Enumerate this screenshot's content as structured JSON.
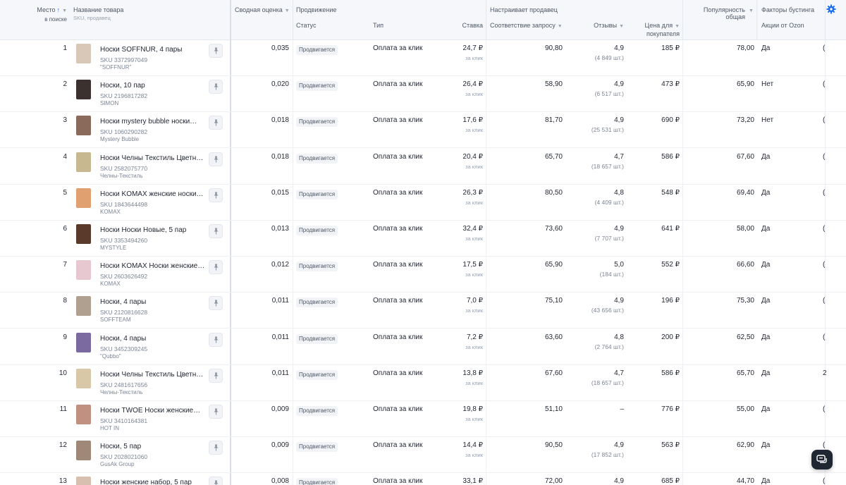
{
  "header": {
    "rank": "Место",
    "rank_sub": "в поиске",
    "product": "Название товара",
    "product_sub": "SKU, продавец",
    "score": "Сводная оценка",
    "promotion": "Продвижение",
    "status": "Статус",
    "type": "Тип",
    "bid": "Ставка",
    "seller_configures": "Настраивает продавец",
    "match": "Соответствие запросу",
    "reviews": "Отзывы",
    "price_line1": "Цена для",
    "price_line2": "покупателя",
    "popularity_line1": "Популярность",
    "popularity_line2": "общая",
    "boost_factors": "Факторы бустинга",
    "ozon_promos": "Акции от Ozon"
  },
  "icons": {
    "sort": "arrow-up-icon",
    "settings": "gear-icon",
    "pin": "pin-icon",
    "chat": "chat-icon"
  },
  "colors": {
    "accent": "#1a6cf0",
    "header_bg": "#f5f7fa"
  },
  "rows": [
    {
      "rank": "1",
      "name": "Носки SOFFNUR, 4 пары",
      "sku": "SKU 3372997049",
      "seller": "\"SOFFNUR\"",
      "score": "0,035",
      "status": "Продвигается",
      "type": "Оплата за клик",
      "bid": "24,7 ₽",
      "bid_sub": "за клик",
      "match": "90,80",
      "rating": "4,9",
      "reviews": "(4 849 шт.)",
      "price": "185 ₽",
      "pop": "78,00",
      "promo": "Да",
      "extra": "(",
      "thumb": "#d9c8b8"
    },
    {
      "rank": "2",
      "name": "Носки, 10 пар",
      "sku": "SKU 2196817282",
      "seller": "SIMON",
      "score": "0,020",
      "status": "Продвигается",
      "type": "Оплата за клик",
      "bid": "26,4 ₽",
      "bid_sub": "за клик",
      "match": "58,90",
      "rating": "4,9",
      "reviews": "(6 517 шт.)",
      "price": "473 ₽",
      "pop": "65,90",
      "promo": "Нет",
      "extra": "(",
      "thumb": "#3b3230"
    },
    {
      "rank": "3",
      "name": "Носки mystery bubble носки…",
      "sku": "SKU 1060290282",
      "seller": "Mystery Bubble",
      "score": "0,018",
      "status": "Продвигается",
      "type": "Оплата за клик",
      "bid": "17,6 ₽",
      "bid_sub": "за клик",
      "match": "81,70",
      "rating": "4,9",
      "reviews": "(25 531 шт.)",
      "price": "690 ₽",
      "pop": "73,20",
      "promo": "Нет",
      "extra": "(",
      "thumb": "#8a6a5a"
    },
    {
      "rank": "4",
      "name": "Носки Челны Текстиль Цветны…",
      "sku": "SKU 2582075770",
      "seller": "Челны-Текстиль",
      "score": "0,018",
      "status": "Продвигается",
      "type": "Оплата за клик",
      "bid": "20,4 ₽",
      "bid_sub": "за клик",
      "match": "65,70",
      "rating": "4,7",
      "reviews": "(18 657 шт.)",
      "price": "586 ₽",
      "pop": "67,60",
      "promo": "Да",
      "extra": "(",
      "thumb": "#c8b890"
    },
    {
      "rank": "5",
      "name": "Носки KOMAX женские носки…",
      "sku": "SKU 1843644498",
      "seller": "KOMAX",
      "score": "0,015",
      "status": "Продвигается",
      "type": "Оплата за клик",
      "bid": "26,3 ₽",
      "bid_sub": "за клик",
      "match": "80,50",
      "rating": "4,8",
      "reviews": "(4 409 шт.)",
      "price": "548 ₽",
      "pop": "69,40",
      "promo": "Да",
      "extra": "(",
      "thumb": "#e0a070"
    },
    {
      "rank": "6",
      "name": "Носки Носки Новые, 5 пар",
      "sku": "SKU 3353494260",
      "seller": "MYSTYLE",
      "score": "0,013",
      "status": "Продвигается",
      "type": "Оплата за клик",
      "bid": "32,4 ₽",
      "bid_sub": "за клик",
      "match": "73,60",
      "rating": "4,9",
      "reviews": "(7 707 шт.)",
      "price": "641 ₽",
      "pop": "58,00",
      "promo": "Да",
      "extra": "(",
      "thumb": "#5a3a2a"
    },
    {
      "rank": "7",
      "name": "Носки KOMAX Носки женские…",
      "sku": "SKU 2603626492",
      "seller": "KOMAX",
      "score": "0,012",
      "status": "Продвигается",
      "type": "Оплата за клик",
      "bid": "17,5 ₽",
      "bid_sub": "за клик",
      "match": "65,90",
      "rating": "5,0",
      "reviews": "(184 шт.)",
      "price": "552 ₽",
      "pop": "66,60",
      "promo": "Да",
      "extra": "(",
      "thumb": "#e8c8d0"
    },
    {
      "rank": "8",
      "name": "Носки, 4 пары",
      "sku": "SKU 2120816628",
      "seller": "SOFFTEAM",
      "score": "0,011",
      "status": "Продвигается",
      "type": "Оплата за клик",
      "bid": "7,0 ₽",
      "bid_sub": "за клик",
      "match": "75,10",
      "rating": "4,9",
      "reviews": "(43 656 шт.)",
      "price": "196 ₽",
      "pop": "75,30",
      "promo": "Да",
      "extra": "(",
      "thumb": "#b0a090"
    },
    {
      "rank": "9",
      "name": "Носки, 4 пары",
      "sku": "SKU 3452309245",
      "seller": "\"Qubbo\"",
      "score": "0,011",
      "status": "Продвигается",
      "type": "Оплата за клик",
      "bid": "7,2 ₽",
      "bid_sub": "за клик",
      "match": "63,60",
      "rating": "4,8",
      "reviews": "(2 764 шт.)",
      "price": "200 ₽",
      "pop": "62,50",
      "promo": "Да",
      "extra": "(",
      "thumb": "#7a6aa0"
    },
    {
      "rank": "10",
      "name": "Носки Челны Текстиль Цветны…",
      "sku": "SKU 2481617656",
      "seller": "Челны-Текстиль",
      "score": "0,011",
      "status": "Продвигается",
      "type": "Оплата за клик",
      "bid": "13,8 ₽",
      "bid_sub": "за клик",
      "match": "67,60",
      "rating": "4,7",
      "reviews": "(18 657 шт.)",
      "price": "586 ₽",
      "pop": "65,70",
      "promo": "Да",
      "extra": "2",
      "thumb": "#d8c8a8"
    },
    {
      "rank": "11",
      "name": "Носки TWOE Носки женские…",
      "sku": "SKU 3410164381",
      "seller": "HOT IN",
      "score": "0,009",
      "status": "Продвигается",
      "type": "Оплата за клик",
      "bid": "19,8 ₽",
      "bid_sub": "за клик",
      "match": "51,10",
      "rating": "–",
      "reviews": "",
      "price": "776 ₽",
      "pop": "55,00",
      "promo": "Да",
      "extra": "(",
      "thumb": "#c09080"
    },
    {
      "rank": "12",
      "name": "Носки, 5 пар",
      "sku": "SKU 2028021060",
      "seller": "GusAk Group",
      "score": "0,009",
      "status": "Продвигается",
      "type": "Оплата за клик",
      "bid": "14,4 ₽",
      "bid_sub": "за клик",
      "match": "90,50",
      "rating": "4,9",
      "reviews": "(17 852 шт.)",
      "price": "563 ₽",
      "pop": "62,90",
      "promo": "Да",
      "extra": "(",
      "thumb": "#a08878"
    },
    {
      "rank": "13",
      "name": "Носки женские набор, 5 пар",
      "sku": "",
      "seller": "",
      "score": "0,008",
      "status": "Продвигается",
      "type": "Оплата за клик",
      "bid": "33,1 ₽",
      "bid_sub": "",
      "match": "72,00",
      "rating": "4,9",
      "reviews": "",
      "price": "685 ₽",
      "pop": "44,70",
      "promo": "Да",
      "extra": "(",
      "thumb": "#d8c0b0"
    }
  ]
}
